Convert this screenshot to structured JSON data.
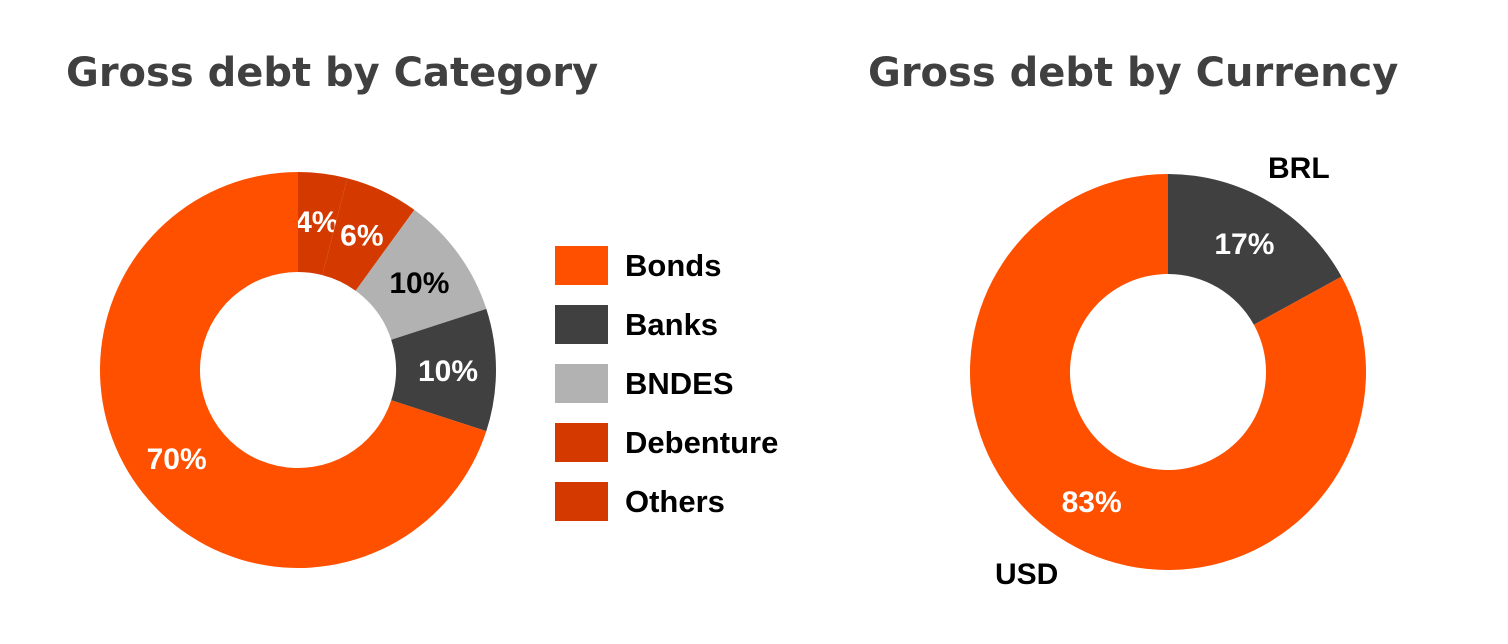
{
  "chart_data": [
    {
      "type": "pie",
      "subtype": "donut",
      "title": "Gross debt by Category",
      "categories": [
        "Bonds",
        "Banks",
        "BNDES",
        "Debenture",
        "Others"
      ],
      "values": [
        70,
        10,
        10,
        6,
        4
      ],
      "data_labels": [
        "70%",
        "10%",
        "10%",
        "6%",
        "4%"
      ],
      "colors": [
        "#FF5000",
        "#404040",
        "#B2B2B2",
        "#D43A00",
        "#D43A00"
      ],
      "label_colors": [
        "#FFFFFF",
        "#FFFFFF",
        "#000000",
        "#FFFFFF",
        "#FFFFFF"
      ],
      "legend": "right"
    },
    {
      "type": "pie",
      "subtype": "donut",
      "title": "Gross debt by Currency",
      "categories": [
        "USD",
        "BRL"
      ],
      "values": [
        83,
        17
      ],
      "data_labels": [
        "83%",
        "17%"
      ],
      "colors": [
        "#FF5000",
        "#404040"
      ],
      "label_colors": [
        "#FFFFFF",
        "#FFFFFF"
      ],
      "legend": "none"
    }
  ]
}
